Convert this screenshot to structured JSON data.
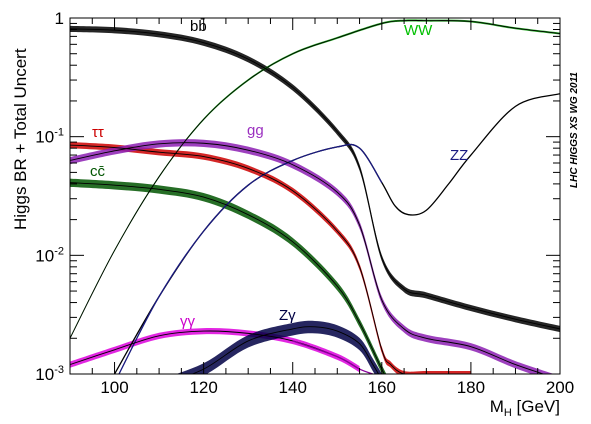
{
  "chart_data": {
    "type": "line",
    "title": "",
    "xlabel": "M",
    "xlabel_sub": "H",
    "xlabel_unit": " [GeV]",
    "ylabel": "Higgs BR + Total Uncert",
    "xlim": [
      90,
      200
    ],
    "ylim": [
      0.001,
      1
    ],
    "yscale": "log",
    "grid": false,
    "legend": "inline-labels",
    "watermark": "LHC HIGGS XS WG 2011",
    "x_ticks": [
      100,
      120,
      140,
      160,
      180,
      200
    ],
    "y_ticks": [
      {
        "value": 0.001,
        "base": "10",
        "exp": "-3"
      },
      {
        "value": 0.01,
        "base": "10",
        "exp": "-2"
      },
      {
        "value": 0.1,
        "base": "10",
        "exp": "-1"
      },
      {
        "value": 1,
        "base": "1",
        "exp": ""
      }
    ],
    "series": [
      {
        "name": "bb̄",
        "color": "#000000",
        "band": 0.06,
        "x": [
          90,
          100,
          110,
          120,
          130,
          140,
          150,
          155,
          160,
          165,
          170,
          180,
          190,
          200
        ],
        "y": [
          0.81,
          0.79,
          0.73,
          0.62,
          0.45,
          0.26,
          0.11,
          0.055,
          0.0095,
          0.0052,
          0.0046,
          0.0036,
          0.0029,
          0.0024
        ]
      },
      {
        "name": "WW",
        "color": "#00a000",
        "band": 0.02,
        "x": [
          90,
          100,
          110,
          120,
          130,
          140,
          150,
          160,
          165,
          170,
          180,
          190,
          200
        ],
        "y": [
          0.002,
          0.011,
          0.046,
          0.14,
          0.3,
          0.5,
          0.68,
          0.9,
          0.95,
          0.95,
          0.935,
          0.82,
          0.74
        ]
      },
      {
        "name": "ZZ",
        "color": "#000000",
        "band": 0.0,
        "x": [
          100,
          110,
          120,
          130,
          140,
          150,
          155,
          160,
          163,
          166,
          170,
          175,
          180,
          190,
          200
        ],
        "y": [
          0.001,
          0.0045,
          0.016,
          0.039,
          0.063,
          0.082,
          0.08,
          0.041,
          0.026,
          0.022,
          0.024,
          0.04,
          0.07,
          0.18,
          0.23
        ]
      },
      {
        "name": "ZZ-curve",
        "color": "#1a1a80",
        "band": 0.0,
        "x": [
          101,
          110,
          120,
          130,
          140,
          150,
          155,
          160
        ],
        "y": [
          0.001,
          0.0045,
          0.016,
          0.039,
          0.063,
          0.082,
          0.08,
          0.041
        ]
      },
      {
        "name": "ττ",
        "color": "#cc0000",
        "band": 0.06,
        "x": [
          90,
          100,
          110,
          120,
          130,
          140,
          150,
          155,
          160,
          162,
          165,
          170,
          180
        ],
        "y": [
          0.085,
          0.081,
          0.074,
          0.068,
          0.054,
          0.035,
          0.016,
          0.008,
          0.0016,
          0.0012,
          0.001,
          0.001,
          0.001
        ]
      },
      {
        "name": "gg",
        "color": "#8c1fb3",
        "band": 0.07,
        "x": [
          90,
          100,
          110,
          120,
          130,
          140,
          150,
          155,
          160,
          165,
          170,
          180,
          190,
          200
        ],
        "y": [
          0.063,
          0.076,
          0.087,
          0.088,
          0.077,
          0.058,
          0.034,
          0.018,
          0.0042,
          0.0024,
          0.002,
          0.0017,
          0.0012,
          0.0009
        ]
      },
      {
        "name": "cc̄",
        "color": "#005500",
        "band": 0.08,
        "x": [
          90,
          100,
          110,
          120,
          130,
          140,
          150,
          155,
          160,
          162
        ],
        "y": [
          0.041,
          0.039,
          0.036,
          0.031,
          0.022,
          0.013,
          0.0055,
          0.0027,
          0.0011,
          0.0008
        ]
      },
      {
        "name": "γγ",
        "color": "#dd00dd",
        "band": 0.06,
        "x": [
          90,
          100,
          110,
          120,
          130,
          140,
          150,
          155
        ],
        "y": [
          0.0012,
          0.0016,
          0.0021,
          0.0023,
          0.0022,
          0.0019,
          0.0014,
          0.0011
        ]
      },
      {
        "name": "γγ-tail",
        "color": "#880099",
        "band": 0.0,
        "x": [
          140,
          150,
          155,
          158
        ],
        "y": [
          0.0019,
          0.0014,
          0.0011,
          0.001
        ]
      },
      {
        "name": "Zγ",
        "color": "#000044",
        "band": 0.12,
        "x": [
          110,
          120,
          130,
          140,
          145,
          150,
          155,
          158,
          160,
          161
        ],
        "y": [
          0.0008,
          0.0011,
          0.0019,
          0.0024,
          0.0025,
          0.0023,
          0.0018,
          0.0012,
          0.0009,
          0.0008
        ]
      }
    ],
    "labels": [
      {
        "text": "bb̄",
        "color": "#000000"
      },
      {
        "text": "WW",
        "color": "#00c000"
      },
      {
        "text": "ZZ",
        "color": "#1a1a80"
      },
      {
        "text": "ττ",
        "color": "#cc0000"
      },
      {
        "text": "gg",
        "color": "#9b30c0"
      },
      {
        "text": "cc̄",
        "color": "#005500"
      },
      {
        "text": "γγ",
        "color": "#cc00cc"
      },
      {
        "text": "Zγ",
        "color": "#000044"
      }
    ]
  }
}
